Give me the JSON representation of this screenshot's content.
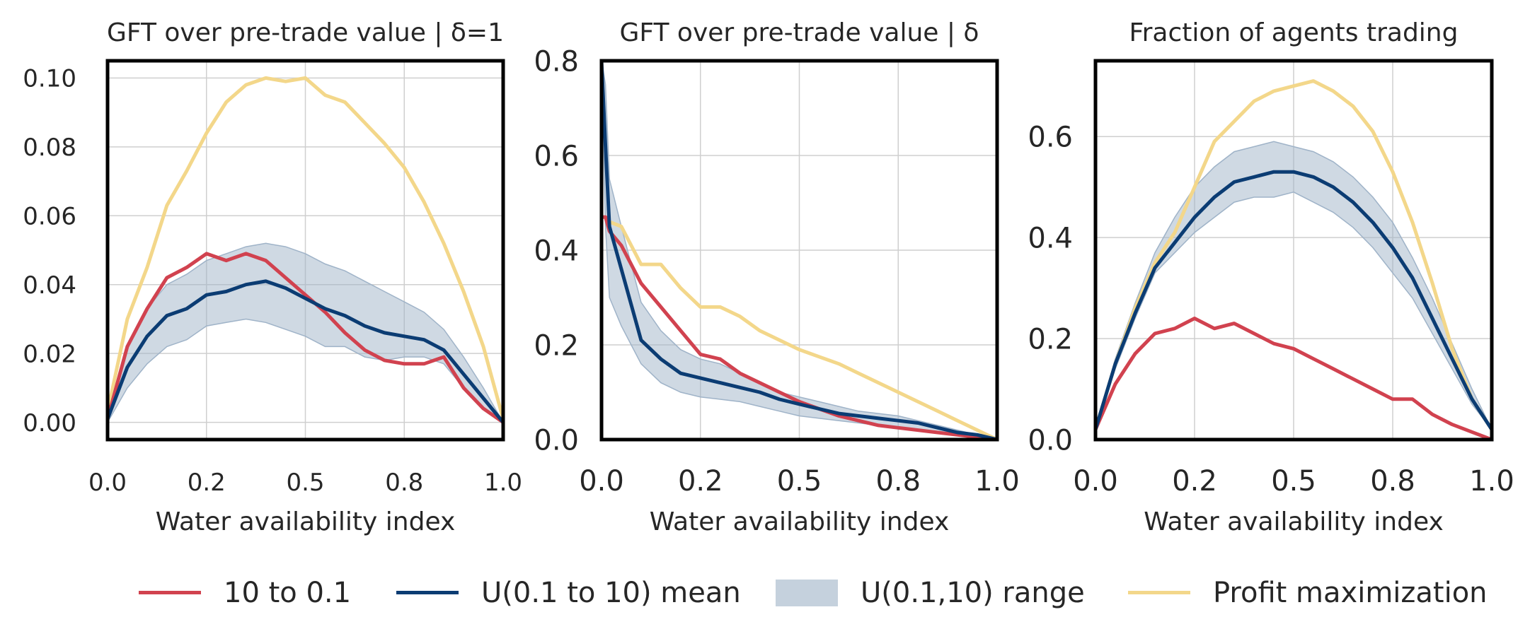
{
  "colors": {
    "red": "#d1424f",
    "navy": "#0b3c73",
    "band": "#9fb3c8",
    "yellow": "#f3d78a",
    "grid": "#cfcfcf",
    "frame": "#000000",
    "text": "#262626"
  },
  "legend": [
    {
      "label": "10 to 0.1",
      "kind": "line",
      "color": "#d1424f"
    },
    {
      "label": "U(0.1 to 10) mean",
      "kind": "line",
      "color": "#0b3c73"
    },
    {
      "label": "U(0.1,10) range",
      "kind": "band",
      "color": "#9fb3c8"
    },
    {
      "label": "Profit maximization",
      "kind": "line",
      "color": "#f3d78a"
    }
  ],
  "chart_data": [
    {
      "type": "line",
      "title": "GFT over pre-trade value | δ=1",
      "xlabel": "Water availability index",
      "ylabel": "",
      "xlim": [
        0,
        1
      ],
      "ylim": [
        -0.005,
        0.105
      ],
      "xticks": [
        0,
        0.25,
        0.5,
        0.75,
        1.0
      ],
      "xtick_labels": [
        "0.0",
        "0.2",
        "0.5",
        "0.8",
        "1.0"
      ],
      "yticks": [
        0,
        0.02,
        0.04,
        0.06,
        0.08,
        0.1
      ],
      "ytick_labels": [
        "0.00",
        "0.02",
        "0.04",
        "0.06",
        "0.08",
        "0.10"
      ],
      "grid": true,
      "x": [
        0,
        0.05,
        0.1,
        0.15,
        0.2,
        0.25,
        0.3,
        0.35,
        0.4,
        0.45,
        0.5,
        0.55,
        0.6,
        0.65,
        0.7,
        0.75,
        0.8,
        0.85,
        0.9,
        0.95,
        1.0
      ],
      "series": [
        {
          "name": "10 to 0.1",
          "color": "#d1424f",
          "values": [
            0.001,
            0.022,
            0.033,
            0.042,
            0.045,
            0.049,
            0.047,
            0.049,
            0.047,
            0.042,
            0.037,
            0.032,
            0.026,
            0.021,
            0.018,
            0.017,
            0.017,
            0.019,
            0.01,
            0.004,
            0.0
          ]
        },
        {
          "name": "U(0.1 to 10) mean",
          "color": "#0b3c73",
          "values": [
            0.001,
            0.016,
            0.025,
            0.031,
            0.033,
            0.037,
            0.038,
            0.04,
            0.041,
            0.039,
            0.036,
            0.033,
            0.031,
            0.028,
            0.026,
            0.025,
            0.024,
            0.021,
            0.014,
            0.007,
            0.0
          ]
        },
        {
          "name": "U(0.1,10) range",
          "color": "#9fb3c8",
          "kind": "band",
          "lower": [
            0.0,
            0.01,
            0.017,
            0.022,
            0.024,
            0.028,
            0.029,
            0.03,
            0.029,
            0.027,
            0.025,
            0.022,
            0.022,
            0.019,
            0.018,
            0.019,
            0.019,
            0.017,
            0.01,
            0.004,
            0.0
          ],
          "upper": [
            0.002,
            0.022,
            0.033,
            0.04,
            0.043,
            0.047,
            0.049,
            0.051,
            0.052,
            0.051,
            0.049,
            0.046,
            0.044,
            0.041,
            0.038,
            0.035,
            0.032,
            0.027,
            0.019,
            0.01,
            0.0
          ]
        },
        {
          "name": "Profit maximization",
          "color": "#f3d78a",
          "values": [
            0.003,
            0.03,
            0.045,
            0.063,
            0.073,
            0.084,
            0.093,
            0.098,
            0.1,
            0.099,
            0.1,
            0.095,
            0.093,
            0.087,
            0.081,
            0.074,
            0.064,
            0.052,
            0.038,
            0.022,
            0.001
          ]
        }
      ]
    },
    {
      "type": "line",
      "title": "GFT over pre-trade value | δ",
      "xlabel": "Water availability index",
      "ylabel": "",
      "xlim": [
        0,
        1
      ],
      "ylim": [
        0,
        0.8
      ],
      "xticks": [
        0,
        0.25,
        0.5,
        0.75,
        1.0
      ],
      "xtick_labels": [
        "0.0",
        "0.2",
        "0.5",
        "0.8",
        "1.0"
      ],
      "yticks": [
        0,
        0.2,
        0.4,
        0.6,
        0.8
      ],
      "ytick_labels": [
        "0.0",
        "0.2",
        "0.4",
        "0.6",
        "0.8"
      ],
      "grid": true,
      "x": [
        0,
        0.01,
        0.02,
        0.05,
        0.1,
        0.15,
        0.2,
        0.25,
        0.3,
        0.35,
        0.4,
        0.45,
        0.5,
        0.55,
        0.6,
        0.65,
        0.7,
        0.75,
        0.8,
        0.85,
        0.9,
        0.95,
        1.0
      ],
      "series": [
        {
          "name": "10 to 0.1",
          "color": "#d1424f",
          "values": [
            0.47,
            0.47,
            0.44,
            0.41,
            0.33,
            0.28,
            0.23,
            0.18,
            0.17,
            0.14,
            0.12,
            0.1,
            0.08,
            0.065,
            0.05,
            0.04,
            0.03,
            0.025,
            0.02,
            0.015,
            0.01,
            0.005,
            0.0
          ]
        },
        {
          "name": "U(0.1 to 10) mean",
          "color": "#0b3c73",
          "values": [
            0.8,
            0.62,
            0.45,
            0.36,
            0.21,
            0.17,
            0.14,
            0.13,
            0.12,
            0.11,
            0.1,
            0.085,
            0.075,
            0.065,
            0.055,
            0.05,
            0.045,
            0.04,
            0.035,
            0.025,
            0.015,
            0.01,
            0.0
          ]
        },
        {
          "name": "U(0.1,10) range",
          "color": "#9fb3c8",
          "kind": "band",
          "lower": [
            0.8,
            0.45,
            0.3,
            0.24,
            0.16,
            0.12,
            0.1,
            0.09,
            0.085,
            0.08,
            0.07,
            0.06,
            0.05,
            0.045,
            0.04,
            0.035,
            0.03,
            0.025,
            0.02,
            0.015,
            0.01,
            0.005,
            0.0
          ],
          "upper": [
            0.8,
            0.75,
            0.55,
            0.45,
            0.29,
            0.23,
            0.19,
            0.17,
            0.16,
            0.14,
            0.12,
            0.1,
            0.09,
            0.08,
            0.07,
            0.06,
            0.055,
            0.05,
            0.04,
            0.03,
            0.02,
            0.01,
            0.0
          ]
        },
        {
          "name": "Profit maximization",
          "color": "#f3d78a",
          "values": [
            0.47,
            0.47,
            0.46,
            0.45,
            0.37,
            0.37,
            0.32,
            0.28,
            0.28,
            0.26,
            0.23,
            0.21,
            0.19,
            0.175,
            0.16,
            0.14,
            0.12,
            0.1,
            0.08,
            0.06,
            0.04,
            0.02,
            0.0
          ]
        }
      ]
    },
    {
      "type": "line",
      "title": "Fraction of agents trading",
      "xlabel": "Water availability index",
      "ylabel": "",
      "xlim": [
        0,
        1
      ],
      "ylim": [
        0,
        0.75
      ],
      "xticks": [
        0,
        0.25,
        0.5,
        0.75,
        1.0
      ],
      "xtick_labels": [
        "0.0",
        "0.2",
        "0.5",
        "0.8",
        "1.0"
      ],
      "yticks": [
        0,
        0.2,
        0.4,
        0.6
      ],
      "ytick_labels": [
        "0.0",
        "0.2",
        "0.4",
        "0.6"
      ],
      "grid": true,
      "x": [
        0,
        0.05,
        0.1,
        0.15,
        0.2,
        0.25,
        0.3,
        0.35,
        0.4,
        0.45,
        0.5,
        0.55,
        0.6,
        0.65,
        0.7,
        0.75,
        0.8,
        0.85,
        0.9,
        0.95,
        1.0
      ],
      "series": [
        {
          "name": "10 to 0.1",
          "color": "#d1424f",
          "values": [
            0.02,
            0.11,
            0.17,
            0.21,
            0.22,
            0.24,
            0.22,
            0.23,
            0.21,
            0.19,
            0.18,
            0.16,
            0.14,
            0.12,
            0.1,
            0.08,
            0.08,
            0.05,
            0.03,
            0.015,
            0.0
          ]
        },
        {
          "name": "U(0.1 to 10) mean",
          "color": "#0b3c73",
          "values": [
            0.02,
            0.15,
            0.25,
            0.34,
            0.39,
            0.44,
            0.48,
            0.51,
            0.52,
            0.53,
            0.53,
            0.52,
            0.5,
            0.47,
            0.43,
            0.38,
            0.32,
            0.24,
            0.16,
            0.08,
            0.02
          ]
        },
        {
          "name": "U(0.1,10) range",
          "color": "#9fb3c8",
          "kind": "band",
          "lower": [
            0.02,
            0.14,
            0.24,
            0.33,
            0.37,
            0.41,
            0.44,
            0.47,
            0.48,
            0.48,
            0.49,
            0.47,
            0.45,
            0.42,
            0.38,
            0.33,
            0.28,
            0.21,
            0.14,
            0.07,
            0.02
          ],
          "upper": [
            0.02,
            0.16,
            0.27,
            0.37,
            0.44,
            0.5,
            0.54,
            0.57,
            0.58,
            0.59,
            0.58,
            0.57,
            0.55,
            0.52,
            0.48,
            0.43,
            0.36,
            0.28,
            0.19,
            0.1,
            0.02
          ]
        },
        {
          "name": "Profit maximization",
          "color": "#f3d78a",
          "values": [
            0.02,
            0.15,
            0.26,
            0.35,
            0.41,
            0.5,
            0.59,
            0.63,
            0.67,
            0.69,
            0.7,
            0.71,
            0.69,
            0.66,
            0.61,
            0.53,
            0.43,
            0.31,
            0.18,
            0.08,
            0.02
          ]
        }
      ]
    }
  ]
}
